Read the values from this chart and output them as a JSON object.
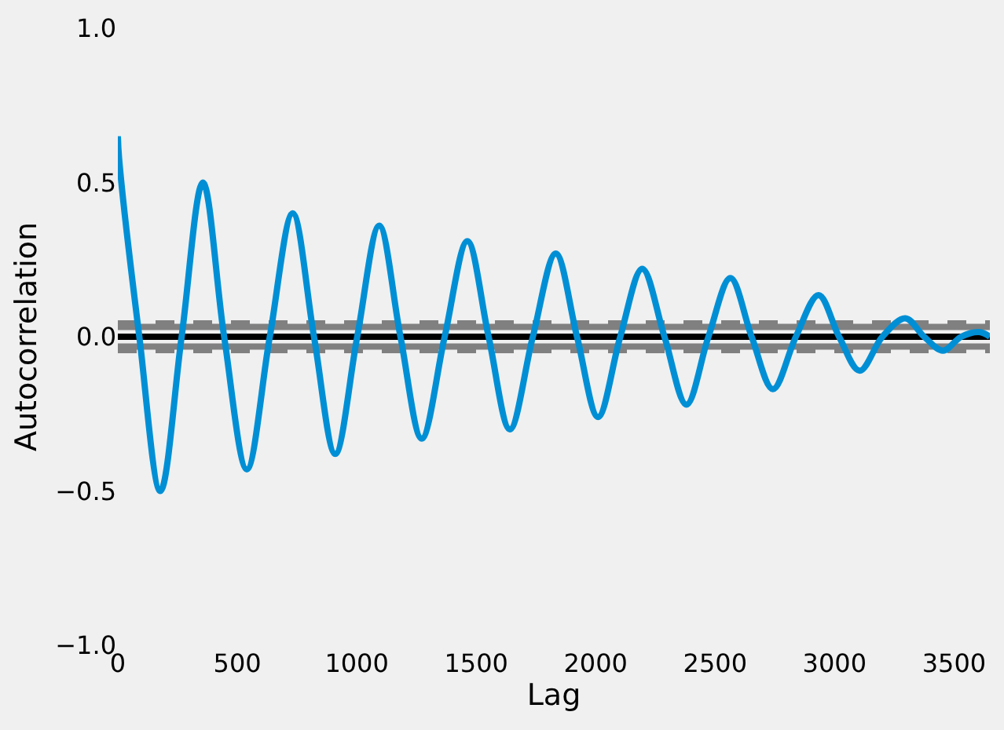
{
  "chart_data": {
    "type": "line",
    "xlabel": "Lag",
    "ylabel": "Autocorrelation",
    "xlim": [
      0,
      3650
    ],
    "xticks": [
      0,
      500,
      1000,
      1500,
      2000,
      2500,
      3000,
      3500
    ],
    "ylim": [
      -1.0,
      1.0
    ],
    "yticks": [
      {
        "value": -1.0,
        "label": "−1.0"
      },
      {
        "value": -0.5,
        "label": "−0.5"
      },
      {
        "value": 0.0,
        "label": "0.0"
      },
      {
        "value": 0.5,
        "label": "0.5"
      },
      {
        "value": 1.0,
        "label": "1.0"
      }
    ],
    "grid": false,
    "marker": "none",
    "line_style": "solid",
    "series": [
      {
        "color": "#008fd5",
        "x": [
          0,
          5,
          90,
          178,
          267,
          356,
          445,
          540,
          636,
          732,
          821,
          910,
          1002,
          1094,
          1183,
          1272,
          1368,
          1463,
          1552,
          1641,
          1737,
          1833,
          1922,
          2010,
          2103,
          2195,
          2288,
          2380,
          2472,
          2564,
          2653,
          2742,
          2838,
          2933,
          3019,
          3105,
          3200,
          3296,
          3375,
          3454,
          3530,
          3606,
          3650
        ],
        "values": [
          0.65,
          0.58,
          0,
          -0.5,
          0,
          0.5,
          0,
          -0.43,
          0,
          0.4,
          0,
          -0.38,
          0,
          0.36,
          0,
          -0.33,
          0,
          0.31,
          0,
          -0.3,
          0,
          0.27,
          0,
          -0.26,
          0,
          0.22,
          0,
          -0.22,
          0,
          0.19,
          0,
          -0.17,
          0,
          0.135,
          0,
          -0.11,
          0,
          0.06,
          0,
          -0.045,
          0,
          0.015,
          0
        ]
      }
    ],
    "ref_lines": [
      {
        "axis": "y",
        "value": 0.043,
        "color": "#808080",
        "line_style": "dashed"
      },
      {
        "axis": "y",
        "value": 0.032,
        "color": "#808080",
        "line_style": "solid"
      },
      {
        "axis": "y",
        "value": 0,
        "color": "#000000",
        "line_style": "solid"
      },
      {
        "axis": "y",
        "value": -0.032,
        "color": "#808080",
        "line_style": "solid"
      },
      {
        "axis": "y",
        "value": -0.043,
        "color": "#808080",
        "line_style": "dashed"
      }
    ]
  }
}
